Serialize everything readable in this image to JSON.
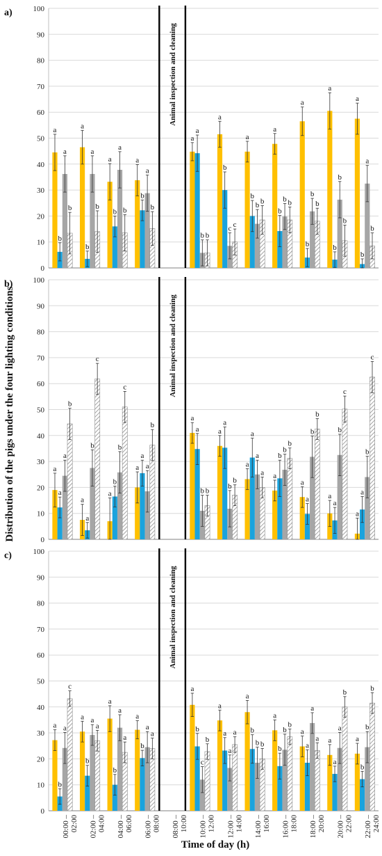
{
  "figure": {
    "ylabel": "Distribution of the pigs under the four lighting conditions",
    "xlabel": "Time of day (h)",
    "annotation": "Animal inspection and cleaning",
    "colors": {
      "orange": "#FFC000",
      "blue": "#1AA3DD",
      "gray": "#A6A6A6",
      "hatch": "#8C8C8C"
    }
  },
  "chart_data": [
    {
      "type": "bar",
      "label": "a)",
      "ylim": [
        0,
        100
      ],
      "yticks": [
        0,
        10,
        20,
        30,
        40,
        50,
        60,
        70,
        80,
        90,
        100
      ],
      "categories": [
        "00:00 – 02:00",
        "02:00 – 04:00",
        "04:00 – 06:00",
        "06:00 – 08:00",
        "08:00 – 10:00",
        "10:00 – 12:00",
        "12:00 – 14:00",
        "14:00 – 16:00",
        "16:00 – 18:00",
        "18:00 – 20:00",
        "20:00 – 22:00",
        "22:00 – 24:00"
      ],
      "gap_index": 4,
      "series": [
        {
          "style": "orange",
          "values": [
            44.5,
            46.5,
            33.2,
            33.8,
            null,
            44.8,
            51.5,
            44.8,
            47.8,
            56.5,
            60.5,
            57.5
          ],
          "err": [
            7,
            6.5,
            7,
            6,
            null,
            3.5,
            5,
            4,
            4,
            5.5,
            7,
            6
          ],
          "sig": [
            "a",
            "a",
            "a",
            "a",
            null,
            "a",
            "a",
            "a",
            "a",
            "a",
            "a",
            "a"
          ]
        },
        {
          "style": "blue",
          "values": [
            6.2,
            3.5,
            16,
            22.2,
            null,
            44.2,
            30,
            20,
            14.2,
            4,
            3.2,
            1.5
          ],
          "err": [
            3.5,
            3,
            4,
            4,
            null,
            7,
            7,
            6,
            6,
            3.5,
            3,
            2
          ],
          "sig": [
            "b",
            "b",
            "b",
            "b",
            null,
            "a",
            "b",
            "b",
            "b",
            "b",
            "b",
            "b"
          ]
        },
        {
          "style": "gray",
          "values": [
            36.2,
            36.2,
            37.8,
            28.8,
            null,
            5.8,
            8.5,
            17,
            19.8,
            21.8,
            26.3,
            32.5
          ],
          "err": [
            7,
            7,
            7,
            7,
            null,
            5,
            5,
            5.5,
            5,
            5,
            7,
            7
          ],
          "sig": [
            "a",
            "a",
            "a",
            "a",
            null,
            "b",
            "c",
            "b",
            "b",
            "b",
            "b",
            "a"
          ]
        },
        {
          "style": "hatch",
          "values": [
            13.4,
            14,
            13.5,
            15.2,
            null,
            5.8,
            10,
            18.5,
            18.5,
            18,
            10.5,
            8.5
          ],
          "err": [
            8,
            8,
            7,
            6.5,
            null,
            5,
            5,
            5.5,
            5,
            5,
            6,
            5
          ],
          "sig": [
            "b",
            "b",
            "b",
            "b",
            null,
            "b",
            "c",
            "b",
            "b",
            "b",
            "b",
            "b"
          ]
        }
      ]
    },
    {
      "type": "bar",
      "label": "b)",
      "ylim": [
        0,
        100
      ],
      "yticks": [
        0,
        10,
        20,
        30,
        40,
        50,
        60,
        70,
        80,
        90,
        100
      ],
      "categories": [
        "00:00 – 02:00",
        "02:00 – 04:00",
        "04:00 – 06:00",
        "06:00 – 08:00",
        "08:00 – 10:00",
        "10:00 – 12:00",
        "12:00 – 14:00",
        "14:00 – 16:00",
        "16:00 – 18:00",
        "18:00 – 20:00",
        "20:00 – 22:00",
        "22:00 – 24:00"
      ],
      "gap_index": 4,
      "series": [
        {
          "style": "orange",
          "values": [
            19,
            7.5,
            7,
            20,
            null,
            41,
            36,
            23.2,
            18.8,
            16.3,
            10,
            2.2
          ],
          "err": [
            6.5,
            6,
            9,
            6,
            null,
            4,
            4,
            4,
            4,
            4,
            5,
            6
          ],
          "sig": [
            "a",
            "a",
            "a",
            "a",
            null,
            "a",
            "a",
            "a",
            "a",
            "a",
            "a",
            "a"
          ]
        },
        {
          "style": "blue",
          "values": [
            12.3,
            3.5,
            16.5,
            25.5,
            null,
            34.8,
            35.3,
            31.5,
            23.5,
            9.8,
            7.3,
            11.5
          ],
          "err": [
            4,
            3,
            4,
            5,
            null,
            6,
            8,
            7.5,
            7,
            4,
            5,
            5
          ],
          "sig": [
            "a",
            "a",
            "b",
            "a",
            null,
            "a",
            "a",
            "a",
            "b",
            "a",
            "a",
            "a"
          ]
        },
        {
          "style": "gray",
          "values": [
            24.5,
            27.5,
            25.8,
            18.5,
            null,
            11,
            11.8,
            25,
            26.8,
            31.8,
            32.5,
            24
          ],
          "err": [
            6,
            7,
            8,
            8,
            null,
            6,
            7,
            5.5,
            6,
            8,
            8,
            8
          ],
          "sig": [
            "a",
            "b",
            "b",
            "a",
            null,
            "b",
            "b",
            "a",
            "b",
            "b",
            "b",
            "b"
          ]
        },
        {
          "style": "hatch",
          "values": [
            44.5,
            61.8,
            51,
            36.3,
            null,
            13,
            17,
            20,
            31.2,
            42.5,
            50.2,
            62.5
          ],
          "err": [
            6,
            6,
            6,
            6,
            null,
            4,
            4,
            4,
            4,
            4,
            5,
            6
          ],
          "sig": [
            "b",
            "c",
            "c",
            "b",
            null,
            "b",
            "b",
            "a",
            "b",
            "b",
            "c",
            "c"
          ]
        }
      ]
    },
    {
      "type": "bar",
      "label": "c)",
      "ylim": [
        0,
        100
      ],
      "yticks": [
        0,
        10,
        20,
        30,
        40,
        50,
        60,
        70,
        80,
        90,
        100
      ],
      "categories": [
        "00:00 – 02:00",
        "02:00 – 04:00",
        "04:00 – 06:00",
        "06:00 – 08:00",
        "08:00 – 10:00",
        "10:00 – 12:00",
        "12:00 – 14:00",
        "14:00 – 16:00",
        "16:00 – 18:00",
        "18:00 – 20:00",
        "20:00 – 22:00",
        "22:00 – 24:00"
      ],
      "gap_index": 4,
      "series": [
        {
          "style": "orange",
          "values": [
            27.2,
            30.5,
            35.5,
            31.2,
            null,
            40.8,
            34.8,
            38,
            31,
            24.8,
            21.5,
            22
          ],
          "err": [
            4,
            4,
            5,
            3.5,
            null,
            4.5,
            4,
            4.5,
            4,
            4,
            4,
            4
          ],
          "sig": [
            "a",
            "a",
            "a",
            "a",
            null,
            "a",
            "a",
            "a",
            "a",
            "a",
            "a",
            "a"
          ]
        },
        {
          "style": "blue",
          "values": [
            5.5,
            13.5,
            10,
            20.3,
            null,
            24.8,
            23.2,
            23.8,
            17.2,
            18.5,
            14.2,
            12.2
          ],
          "err": [
            3,
            4,
            4,
            3,
            null,
            5,
            5,
            5.5,
            5,
            5,
            3,
            3
          ],
          "sig": [
            "b",
            "b",
            "b",
            "b",
            null,
            "b",
            "a",
            "b",
            "b",
            "a",
            "a",
            "b"
          ]
        },
        {
          "style": "gray",
          "values": [
            24.2,
            29.2,
            32,
            24.5,
            null,
            12,
            16.5,
            18.5,
            23.5,
            33.8,
            24.2,
            24.5
          ],
          "err": [
            6,
            4,
            5,
            6,
            null,
            5,
            5,
            6,
            6,
            4,
            6,
            6
          ],
          "sig": [
            "a",
            "a",
            "a",
            "a",
            null,
            "c",
            "a",
            "b",
            "b",
            "a",
            "a",
            "b"
          ]
        },
        {
          "style": "hatch",
          "values": [
            43.2,
            27,
            22.5,
            24,
            null,
            22.8,
            25.5,
            20,
            28.5,
            23.2,
            40,
            41.5
          ],
          "err": [
            3,
            4,
            4,
            4,
            null,
            3,
            3,
            4,
            3,
            3,
            4,
            4
          ],
          "sig": [
            "c",
            "a",
            "a",
            "a",
            null,
            "b",
            "a",
            "b",
            "b",
            "a",
            "b",
            "b"
          ]
        }
      ]
    }
  ]
}
